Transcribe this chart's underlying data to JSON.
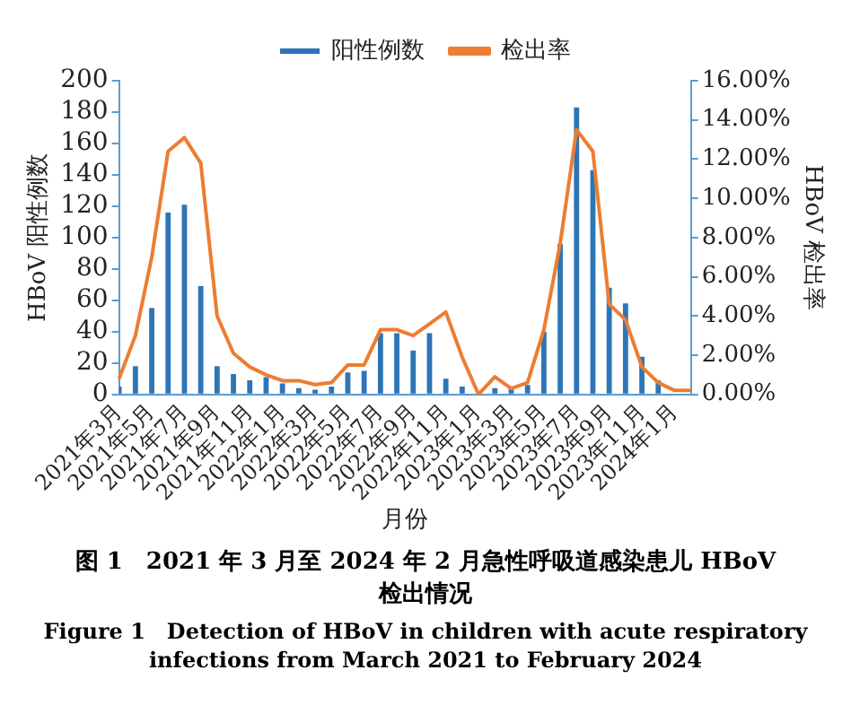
{
  "chart_data": {
    "type": "bar",
    "title": "图 1　2021 年 3 月至 2024 年 2 月急性呼吸道感染患儿 HBoV 检出情况",
    "subtitle": "Figure 1　Detection of HBoV in children with acute respiratory infections from March 2021 to February 2024",
    "xlabel": "月份",
    "ylabel": "HBoV 阳性例数",
    "y2label": "HBoV 检出率",
    "categories": [
      "2021年3月",
      null,
      "2021年5月",
      null,
      "2021年7月",
      null,
      "2021年9月",
      null,
      "2021年11月",
      null,
      "2022年1月",
      null,
      "2022年3月",
      null,
      "2022年5月",
      null,
      "2022年7月",
      null,
      "2022年9月",
      null,
      "2022年11月",
      null,
      "2023年1月",
      null,
      "2023年3月",
      null,
      "2023年5月",
      null,
      "2023年7月",
      null,
      "2023年9月",
      null,
      "2023年11月",
      null,
      "2024年1月",
      null
    ],
    "series": [
      {
        "name": "阳性例数",
        "color": "#2e75b6",
        "values": [
          5,
          18,
          55,
          116,
          121,
          69,
          18,
          13,
          9,
          11,
          7,
          4,
          3,
          5,
          14,
          15,
          39,
          39,
          28,
          39,
          10,
          5,
          0,
          4,
          4,
          6,
          40,
          96,
          183,
          143,
          68,
          58,
          24,
          9,
          null,
          null
        ]
      },
      {
        "name": "检出率",
        "type": "line",
        "axis": "y2",
        "color": "#ed7d31",
        "values": [
          0.8,
          3.0,
          7.0,
          12.4,
          13.1,
          11.8,
          4.0,
          2.1,
          1.4,
          1.0,
          0.7,
          0.7,
          0.5,
          0.6,
          1.5,
          1.5,
          3.3,
          3.3,
          3.0,
          3.6,
          4.2,
          1.9,
          0,
          0.9,
          0.3,
          0.6,
          3.3,
          7.7,
          13.5,
          12.4,
          4.6,
          3.8,
          1.4,
          0.6,
          0.2,
          0.2
        ]
      }
    ],
    "ylim": [
      0,
      200
    ],
    "yticks": [
      0,
      20,
      40,
      60,
      80,
      100,
      120,
      140,
      160,
      180,
      200
    ],
    "y2lim": [
      0,
      16
    ],
    "y2ticks": [
      {
        "value": 0,
        "label": "0.00%"
      },
      {
        "value": 2,
        "label": "2.00%"
      },
      {
        "value": 4,
        "label": "4.00%"
      },
      {
        "value": 6,
        "label": "6.00%"
      },
      {
        "value": 8,
        "label": "8.00%"
      },
      {
        "value": 10,
        "label": "10.00%"
      },
      {
        "value": 12,
        "label": "12.00%"
      },
      {
        "value": 14,
        "label": "14.00%"
      },
      {
        "value": 16,
        "label": "16.00%"
      }
    ],
    "legend": "top",
    "grid": false,
    "marker": "none"
  }
}
